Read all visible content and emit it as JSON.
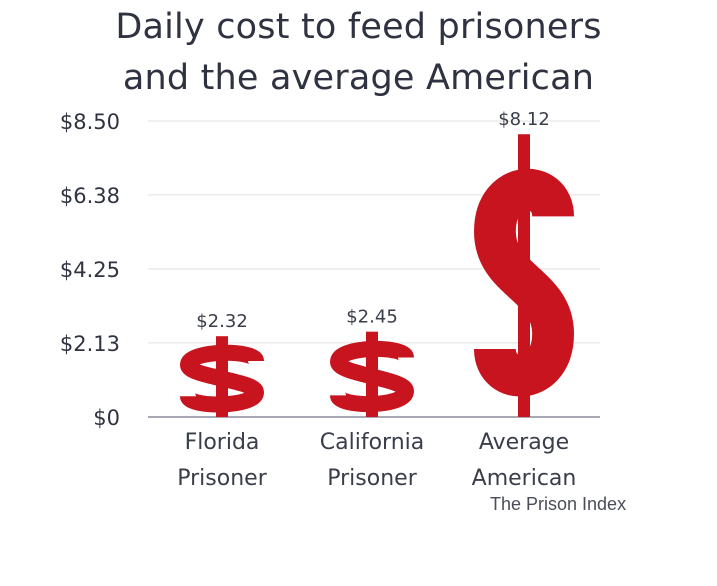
{
  "chart_data": {
    "type": "bar",
    "title": "Daily cost to feed prisoners and the average American",
    "title_lines": [
      "Daily cost to feed prisoners",
      "and the average American"
    ],
    "categories": [
      "Florida Prisoner",
      "California Prisoner",
      "Average American"
    ],
    "category_lines": [
      [
        "Florida",
        "Prisoner"
      ],
      [
        "California",
        "Prisoner"
      ],
      [
        "Average",
        "American"
      ]
    ],
    "values": [
      2.32,
      2.45,
      8.12
    ],
    "data_labels": [
      "$2.32",
      "$2.45",
      "$8.12"
    ],
    "yticks": [
      0,
      2.13,
      4.25,
      6.38,
      8.5
    ],
    "ytick_labels": [
      "$0",
      "$2.13",
      "$4.25",
      "$6.38",
      "$8.50"
    ],
    "ylim": [
      0,
      8.5
    ],
    "xlabel": "",
    "ylabel": "",
    "grid": true,
    "bar_style": "dollar-sign glyphs",
    "bar_color": "#c8141e",
    "source": "The Prison Index"
  }
}
